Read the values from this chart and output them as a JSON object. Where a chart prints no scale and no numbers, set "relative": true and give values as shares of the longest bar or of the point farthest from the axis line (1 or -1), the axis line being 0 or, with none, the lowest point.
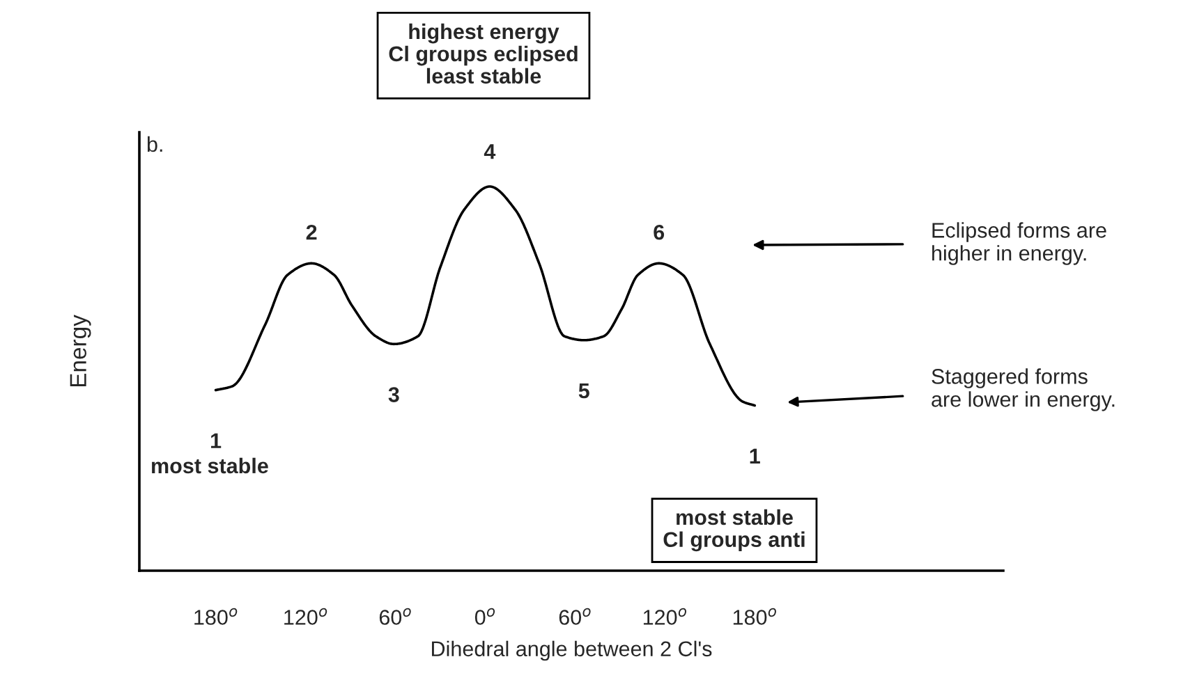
{
  "chart_data": {
    "type": "line",
    "relative": true,
    "xlabel": "Dihedral angle between 2 Cl's",
    "ylabel": "Energy",
    "xlim": [
      -231,
      346
    ],
    "xticks": [
      {
        "value": -180,
        "label": "180$^{o}$"
      },
      {
        "value": -120,
        "label": "120$^{o}$"
      },
      {
        "value": -60,
        "label": "60$^{o}$"
      },
      {
        "value": 0,
        "label": "0$^{o}$"
      },
      {
        "value": 60,
        "label": "60$^{o}$"
      },
      {
        "value": 120,
        "label": "120$^{o}$"
      },
      {
        "value": 180,
        "label": "180$^{o}$"
      }
    ],
    "tick_labels": "x",
    "grid": false,
    "series": [
      {
        "color": "#000000",
        "x": [
          -180,
          -169,
          -147,
          -132,
          -116,
          -101,
          -89,
          -73,
          -61,
          -45,
          -30,
          -14,
          3,
          20,
          36,
          53,
          66,
          79,
          91,
          102,
          116,
          132,
          150,
          172,
          180
        ],
        "values": [
          0.47,
          0.48,
          0.64,
          0.77,
          0.8,
          0.77,
          0.69,
          0.61,
          0.59,
          0.61,
          0.79,
          0.94,
          1.0,
          0.94,
          0.8,
          0.61,
          0.6,
          0.61,
          0.68,
          0.77,
          0.8,
          0.77,
          0.59,
          0.44,
          0.43
        ]
      }
    ],
    "annotations": [
      "highest energy\nCl groups eclipsed\nleast stable",
      "b.",
      "Eclipsed forms are\nhigher in energy.",
      "Staggered forms\nare lower in energy.",
      "most stable",
      "most stable\nCl groups anti",
      {
        "text": "1",
        "x": -180,
        "y": 0.47
      },
      {
        "text": "2",
        "x": -116,
        "y": 0.8
      },
      {
        "text": "3",
        "x": -61,
        "y": 0.59
      },
      {
        "text": "4",
        "x": 3,
        "y": 1.0
      },
      {
        "text": "5",
        "x": 66,
        "y": 0.6
      },
      {
        "text": "6",
        "x": 116,
        "y": 0.8
      },
      {
        "text": "1",
        "x": 180,
        "y": 0.43
      }
    ]
  }
}
